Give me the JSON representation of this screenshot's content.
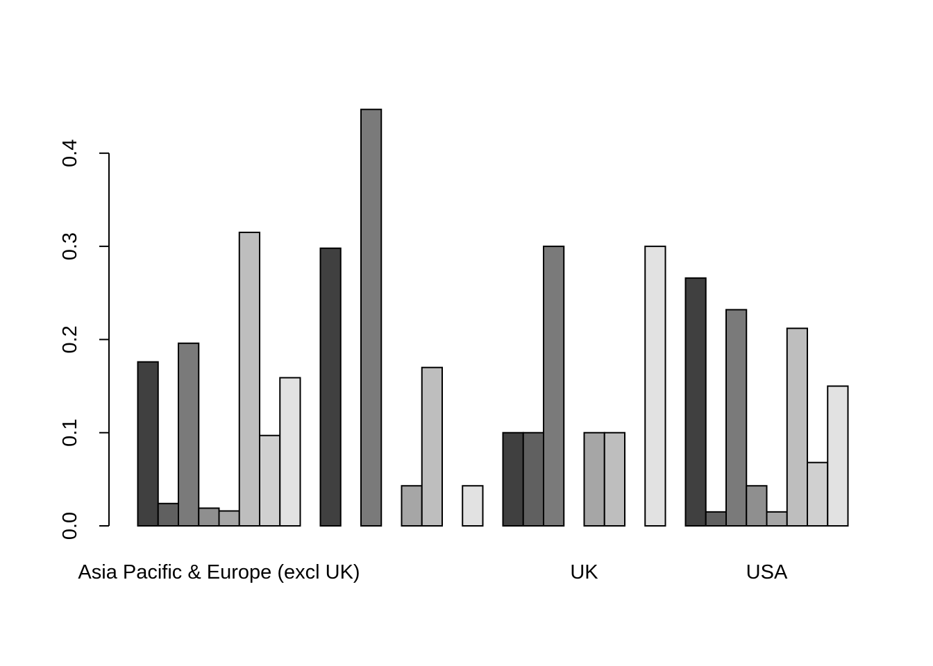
{
  "chart_data": {
    "type": "bar",
    "grouping": "grouped",
    "categories": [
      "Asia Pacific & Europe (excl UK)",
      "",
      "UK",
      "USA"
    ],
    "category_labels_shown": [
      "Asia Pacific & Europe (excl UK)",
      "UK",
      "USA"
    ],
    "series": [
      {
        "color": "#404040",
        "values": [
          0.176,
          0.298,
          0.1,
          0.266
        ]
      },
      {
        "color": "#606060",
        "values": [
          0.024,
          0.0,
          0.1,
          0.015
        ]
      },
      {
        "color": "#7a7a7a",
        "values": [
          0.196,
          0.447,
          0.3,
          0.232
        ]
      },
      {
        "color": "#8f8f8f",
        "values": [
          0.019,
          0.0,
          0.0,
          0.043
        ]
      },
      {
        "color": "#a6a6a6",
        "values": [
          0.016,
          0.043,
          0.1,
          0.015
        ]
      },
      {
        "color": "#bebebe",
        "values": [
          0.315,
          0.17,
          0.1,
          0.212
        ]
      },
      {
        "color": "#d0d0d0",
        "values": [
          0.097,
          0.0,
          0.0,
          0.068
        ]
      },
      {
        "color": "#e2e2e2",
        "values": [
          0.159,
          0.043,
          0.3,
          0.15
        ]
      }
    ],
    "yticks": [
      0.0,
      0.1,
      0.2,
      0.3,
      0.4
    ],
    "ytick_labels": [
      "0.0",
      "0.1",
      "0.2",
      "0.3",
      "0.4"
    ],
    "ylim": [
      0,
      0.447
    ],
    "title": "",
    "xlabel": "",
    "ylabel": "",
    "grid": false,
    "legend": "none"
  }
}
